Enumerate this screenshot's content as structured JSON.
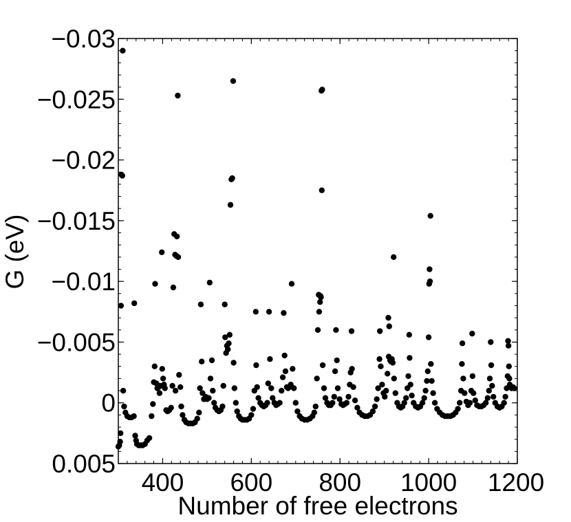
{
  "chart_data": {
    "type": "scatter",
    "xlabel": "Number of free electrons",
    "ylabel": "G (eV)",
    "xlim": [
      300,
      1200
    ],
    "ylim": [
      0.005,
      -0.03
    ],
    "y_axis_inverted": true,
    "x_ticks": [
      400,
      600,
      800,
      1000,
      1200
    ],
    "x_tick_labels": [
      "400",
      "600",
      "800",
      "1000",
      "1200"
    ],
    "y_ticks": [
      0.005,
      0,
      -0.005,
      -0.01,
      -0.015,
      -0.02,
      -0.025,
      -0.03
    ],
    "y_tick_labels": [
      "0.005",
      "0",
      "−0.005",
      "−0.01",
      "−0.015",
      "−0.02",
      "−0.025",
      "−0.03"
    ],
    "grid": false,
    "marker_color": "#000000",
    "points": [
      [
        300,
        0.0036
      ],
      [
        302,
        0.0035
      ],
      [
        304,
        0.0032
      ],
      [
        305,
        0.0025
      ],
      [
        306,
        -0.008
      ],
      [
        307,
        -0.0188
      ],
      [
        309,
        -0.0187
      ],
      [
        310,
        -0.029
      ],
      [
        311,
        -0.001
      ],
      [
        313,
        0.0003
      ],
      [
        316,
        0.0008
      ],
      [
        320,
        0.0011
      ],
      [
        325,
        0.0012
      ],
      [
        330,
        0.0012
      ],
      [
        335,
        0.0011
      ],
      [
        336,
        -0.0082
      ],
      [
        338,
        0.0027
      ],
      [
        340,
        0.0031
      ],
      [
        342,
        0.0034
      ],
      [
        346,
        0.0035
      ],
      [
        350,
        0.0035
      ],
      [
        355,
        0.0035
      ],
      [
        360,
        0.0034
      ],
      [
        365,
        0.0031
      ],
      [
        370,
        0.0029
      ],
      [
        375,
        0.0011
      ],
      [
        378,
        0.0001
      ],
      [
        380,
        -0.0017
      ],
      [
        382,
        -0.003
      ],
      [
        383,
        -0.0098
      ],
      [
        386,
        -0.0016
      ],
      [
        388,
        -0.0012
      ],
      [
        391,
        -0.0013
      ],
      [
        393,
        -0.0008
      ],
      [
        395,
        -0.0014
      ],
      [
        398,
        -0.0124
      ],
      [
        399,
        -0.0028
      ],
      [
        401,
        -0.002
      ],
      [
        403,
        -0.0015
      ],
      [
        405,
        -0.0012
      ],
      [
        408,
        0.0006
      ],
      [
        411,
        0.0007
      ],
      [
        415,
        0.0006
      ],
      [
        419,
        0.0004
      ],
      [
        422,
        -0.0014
      ],
      [
        424,
        -0.0095
      ],
      [
        426,
        -0.0139
      ],
      [
        428,
        -0.0122
      ],
      [
        429,
        -0.001
      ],
      [
        431,
        -0.0121
      ],
      [
        432,
        -0.0137
      ],
      [
        434,
        -0.0253
      ],
      [
        435,
        -0.012
      ],
      [
        437,
        -0.0023
      ],
      [
        440,
        -0.0013
      ],
      [
        442,
        0.0003
      ],
      [
        445,
        0.001
      ],
      [
        449,
        0.0014
      ],
      [
        453,
        0.0016
      ],
      [
        458,
        0.0017
      ],
      [
        463,
        0.0017
      ],
      [
        468,
        0.0017
      ],
      [
        473,
        0.0016
      ],
      [
        478,
        0.0013
      ],
      [
        482,
        0.0008
      ],
      [
        484,
        -0.0012
      ],
      [
        486,
        -0.0081
      ],
      [
        488,
        -0.0034
      ],
      [
        490,
        -0.0008
      ],
      [
        493,
        -0.0003
      ],
      [
        497,
        -0.0005
      ],
      [
        500,
        -0.0003
      ],
      [
        504,
        -0.0004
      ],
      [
        506,
        -0.0099
      ],
      [
        508,
        -0.002
      ],
      [
        511,
        -0.0035
      ],
      [
        513,
        -0.001
      ],
      [
        516,
        0.0
      ],
      [
        519,
        0.0004
      ],
      [
        523,
        0.0006
      ],
      [
        527,
        0.0007
      ],
      [
        531,
        0.0006
      ],
      [
        535,
        0.0003
      ],
      [
        537,
        -0.0014
      ],
      [
        540,
        -0.0081
      ],
      [
        541,
        -0.0054
      ],
      [
        543,
        -0.0041
      ],
      [
        545,
        -0.0047
      ],
      [
        547,
        -0.0044
      ],
      [
        549,
        -0.0049
      ],
      [
        551,
        -0.0056
      ],
      [
        553,
        -0.0163
      ],
      [
        555,
        -0.0184
      ],
      [
        557,
        -0.0185
      ],
      [
        559,
        -0.0265
      ],
      [
        560,
        -0.0033
      ],
      [
        562,
        -0.0012
      ],
      [
        565,
        0.0
      ],
      [
        568,
        0.0007
      ],
      [
        572,
        0.0011
      ],
      [
        576,
        0.0013
      ],
      [
        580,
        0.0014
      ],
      [
        585,
        0.0014
      ],
      [
        590,
        0.0014
      ],
      [
        595,
        0.0013
      ],
      [
        600,
        0.001
      ],
      [
        604,
        0.0005
      ],
      [
        607,
        -0.001
      ],
      [
        610,
        -0.0075
      ],
      [
        611,
        -0.0031
      ],
      [
        613,
        -0.0013
      ],
      [
        616,
        -0.0004
      ],
      [
        620,
        0.0
      ],
      [
        624,
        0.0002
      ],
      [
        628,
        0.0003
      ],
      [
        632,
        0.0002
      ],
      [
        636,
        0.0
      ],
      [
        638,
        -0.0016
      ],
      [
        640,
        -0.0075
      ],
      [
        642,
        -0.0036
      ],
      [
        645,
        -0.0012
      ],
      [
        648,
        -0.0004
      ],
      [
        652,
        0.0
      ],
      [
        656,
        0.0002
      ],
      [
        660,
        0.0001
      ],
      [
        664,
        0.0
      ],
      [
        668,
        -0.001
      ],
      [
        671,
        -0.0021
      ],
      [
        673,
        -0.0074
      ],
      [
        675,
        -0.0039
      ],
      [
        677,
        -0.0026
      ],
      [
        680,
        -0.0013
      ],
      [
        683,
        -0.0012
      ],
      [
        686,
        -0.0013
      ],
      [
        689,
        -0.0015
      ],
      [
        691,
        -0.0098
      ],
      [
        693,
        -0.0028
      ],
      [
        696,
        -0.0012
      ],
      [
        700,
        0.0
      ],
      [
        704,
        0.0007
      ],
      [
        709,
        0.0011
      ],
      [
        714,
        0.0013
      ],
      [
        720,
        0.0014
      ],
      [
        726,
        0.0014
      ],
      [
        732,
        0.0013
      ],
      [
        738,
        0.0011
      ],
      [
        742,
        0.0008
      ],
      [
        745,
        0.0003
      ],
      [
        748,
        -0.002
      ],
      [
        750,
        -0.006
      ],
      [
        752,
        -0.0089
      ],
      [
        753,
        -0.0075
      ],
      [
        755,
        -0.0083
      ],
      [
        756,
        -0.0088
      ],
      [
        757,
        -0.0087
      ],
      [
        758,
        -0.0257
      ],
      [
        759,
        -0.0175
      ],
      [
        760,
        -0.0258
      ],
      [
        761,
        -0.0031
      ],
      [
        764,
        -0.0012
      ],
      [
        767,
        -0.0004
      ],
      [
        771,
        0.0
      ],
      [
        775,
        0.0002
      ],
      [
        779,
        0.0002
      ],
      [
        783,
        0.0
      ],
      [
        787,
        -0.0005
      ],
      [
        789,
        -0.0026
      ],
      [
        791,
        -0.006
      ],
      [
        793,
        -0.0035
      ],
      [
        795,
        -0.0012
      ],
      [
        799,
        -0.0003
      ],
      [
        803,
        0.0001
      ],
      [
        807,
        0.0002
      ],
      [
        811,
        0.0001
      ],
      [
        815,
        0.0
      ],
      [
        819,
        -0.0005
      ],
      [
        822,
        -0.0015
      ],
      [
        824,
        -0.0025
      ],
      [
        826,
        -0.0059
      ],
      [
        827,
        -0.0028
      ],
      [
        830,
        -0.0013
      ],
      [
        834,
        -0.0002
      ],
      [
        839,
        0.0004
      ],
      [
        844,
        0.0008
      ],
      [
        850,
        0.001
      ],
      [
        856,
        0.0011
      ],
      [
        862,
        0.0011
      ],
      [
        868,
        0.001
      ],
      [
        874,
        0.0007
      ],
      [
        879,
        0.0003
      ],
      [
        883,
        -0.0003
      ],
      [
        886,
        -0.0012
      ],
      [
        889,
        -0.0036
      ],
      [
        890,
        -0.0059
      ],
      [
        892,
        -0.003
      ],
      [
        895,
        -0.0015
      ],
      [
        898,
        -0.0008
      ],
      [
        901,
        -0.0005
      ],
      [
        904,
        -0.001
      ],
      [
        907,
        -0.0024
      ],
      [
        909,
        -0.007
      ],
      [
        910,
        -0.0038
      ],
      [
        911,
        -0.0063
      ],
      [
        913,
        -0.0035
      ],
      [
        915,
        -0.0034
      ],
      [
        917,
        -0.0036
      ],
      [
        919,
        -0.0033
      ],
      [
        921,
        -0.012
      ],
      [
        922,
        -0.002
      ],
      [
        925,
        -0.0008
      ],
      [
        929,
        0.0
      ],
      [
        933,
        0.0003
      ],
      [
        937,
        0.0004
      ],
      [
        941,
        0.0003
      ],
      [
        945,
        0.0
      ],
      [
        949,
        -0.0004
      ],
      [
        952,
        -0.0012
      ],
      [
        954,
        -0.0022
      ],
      [
        956,
        -0.0056
      ],
      [
        957,
        -0.0037
      ],
      [
        959,
        -0.0015
      ],
      [
        962,
        -0.0006
      ],
      [
        966,
        0.0
      ],
      [
        971,
        0.0003
      ],
      [
        976,
        0.0004
      ],
      [
        981,
        0.0003
      ],
      [
        986,
        0.0
      ],
      [
        990,
        -0.0004
      ],
      [
        993,
        -0.001
      ],
      [
        996,
        -0.0018
      ],
      [
        998,
        -0.0026
      ],
      [
        1000,
        -0.0054
      ],
      [
        1001,
        -0.0098
      ],
      [
        1002,
        -0.011
      ],
      [
        1003,
        -0.01
      ],
      [
        1004,
        -0.0154
      ],
      [
        1005,
        -0.0032
      ],
      [
        1007,
        -0.0018
      ],
      [
        1010,
        -0.0008
      ],
      [
        1014,
        0.0
      ],
      [
        1019,
        0.0005
      ],
      [
        1025,
        0.0008
      ],
      [
        1031,
        0.001
      ],
      [
        1037,
        0.0011
      ],
      [
        1043,
        0.0011
      ],
      [
        1049,
        0.0011
      ],
      [
        1055,
        0.001
      ],
      [
        1061,
        0.0008
      ],
      [
        1066,
        0.0005
      ],
      [
        1070,
        0.0
      ],
      [
        1073,
        -0.001
      ],
      [
        1075,
        -0.0032
      ],
      [
        1076,
        -0.0049
      ],
      [
        1078,
        -0.002
      ],
      [
        1081,
        -0.0008
      ],
      [
        1085,
        -0.0001
      ],
      [
        1089,
        0.0002
      ],
      [
        1093,
        0.0
      ],
      [
        1096,
        -0.001
      ],
      [
        1098,
        -0.0057
      ],
      [
        1099,
        -0.0022
      ],
      [
        1101,
        -0.0008
      ],
      [
        1105,
        -0.0002
      ],
      [
        1109,
        0.0002
      ],
      [
        1114,
        0.0003
      ],
      [
        1119,
        0.0003
      ],
      [
        1124,
        0.0002
      ],
      [
        1129,
        0.0
      ],
      [
        1133,
        -0.0004
      ],
      [
        1136,
        -0.001
      ],
      [
        1138,
        -0.002
      ],
      [
        1140,
        -0.005
      ],
      [
        1141,
        -0.0031
      ],
      [
        1143,
        -0.0014
      ],
      [
        1146,
        -0.0005
      ],
      [
        1150,
        0.0
      ],
      [
        1155,
        0.0003
      ],
      [
        1160,
        0.0004
      ],
      [
        1165,
        0.0003
      ],
      [
        1170,
        0.0
      ],
      [
        1173,
        -0.0005
      ],
      [
        1176,
        -0.0012
      ],
      [
        1178,
        -0.0022
      ],
      [
        1179,
        -0.0051
      ],
      [
        1180,
        -0.0047
      ],
      [
        1181,
        -0.003
      ],
      [
        1182,
        -0.002
      ],
      [
        1183,
        -0.0015
      ],
      [
        1185,
        -0.0013
      ],
      [
        1187,
        -0.0012
      ],
      [
        1190,
        -0.0013
      ],
      [
        1193,
        -0.0012
      ]
    ]
  }
}
